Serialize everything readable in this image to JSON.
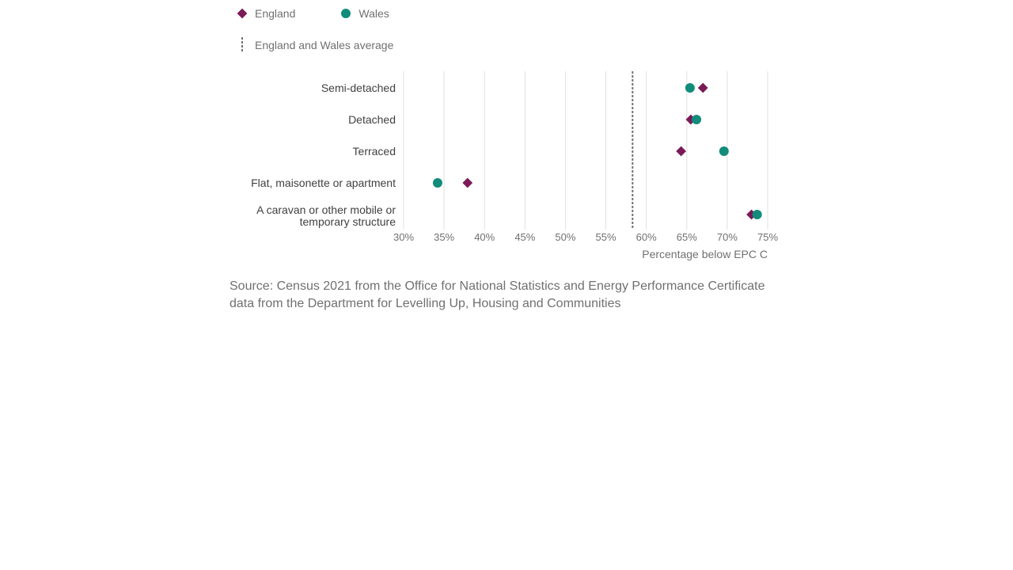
{
  "legend": {
    "england": "England",
    "wales": "Wales",
    "average": "England and Wales average"
  },
  "colors": {
    "england": "#7a1a57",
    "wales": "#118c7b",
    "average_line": "#707070",
    "grid": "#e0e0e0"
  },
  "chart_data": {
    "type": "scatter",
    "orientation": "horizontal-dot-plot",
    "categories": [
      "Semi-detached",
      "Detached",
      "Terraced",
      "Flat, maisonette or apartment",
      "A caravan or other mobile or temporary structure"
    ],
    "category_lines": [
      [
        "Semi-detached"
      ],
      [
        "Detached"
      ],
      [
        "Terraced"
      ],
      [
        "Flat, maisonette or apartment"
      ],
      [
        "A caravan or other mobile or",
        "temporary structure"
      ]
    ],
    "series": [
      {
        "name": "England",
        "marker": "diamond",
        "values": [
          67.0,
          65.5,
          64.3,
          37.9,
          73.0
        ]
      },
      {
        "name": "Wales",
        "marker": "circle",
        "values": [
          65.4,
          66.2,
          69.6,
          34.2,
          73.7
        ]
      }
    ],
    "average": 58.3,
    "xlim": [
      30,
      75
    ],
    "xticks": [
      30,
      35,
      40,
      45,
      50,
      55,
      60,
      65,
      70,
      75
    ],
    "tick_suffix": "%",
    "xlabel": "Percentage below EPC C",
    "grid": true,
    "legend_position": "top-left"
  },
  "source": "Source: Census 2021 from the Office for National Statistics and Energy Performance Certificate data from the Department for Levelling Up, Housing and Communities"
}
